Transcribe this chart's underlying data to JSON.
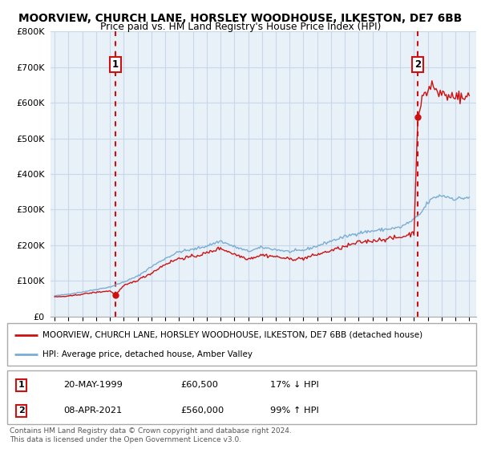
{
  "title": "MOORVIEW, CHURCH LANE, HORSLEY WOODHOUSE, ILKESTON, DE7 6BB",
  "subtitle": "Price paid vs. HM Land Registry's House Price Index (HPI)",
  "sale1_date": "20-MAY-1999",
  "sale1_price": 60500,
  "sale1_label": "17% ↓ HPI",
  "sale1_num": "1",
  "sale2_date": "08-APR-2021",
  "sale2_price": 560000,
  "sale2_label": "99% ↑ HPI",
  "sale2_num": "2",
  "legend_line1": "MOORVIEW, CHURCH LANE, HORSLEY WOODHOUSE, ILKESTON, DE7 6BB (detached house)",
  "legend_line2": "HPI: Average price, detached house, Amber Valley",
  "footer": "Contains HM Land Registry data © Crown copyright and database right 2024.\nThis data is licensed under the Open Government Licence v3.0.",
  "hpi_color": "#7aadd4",
  "price_color": "#cc1111",
  "sale1_x_year": 1999.38,
  "sale2_x_year": 2021.27,
  "ylim_max": 800000,
  "ylim_min": 0,
  "xlim_min": 1994.7,
  "xlim_max": 2025.5,
  "chart_bg": "#e8f0f8",
  "grid_color": "#c8d8e8",
  "title_fontsize": 10,
  "subtitle_fontsize": 9
}
